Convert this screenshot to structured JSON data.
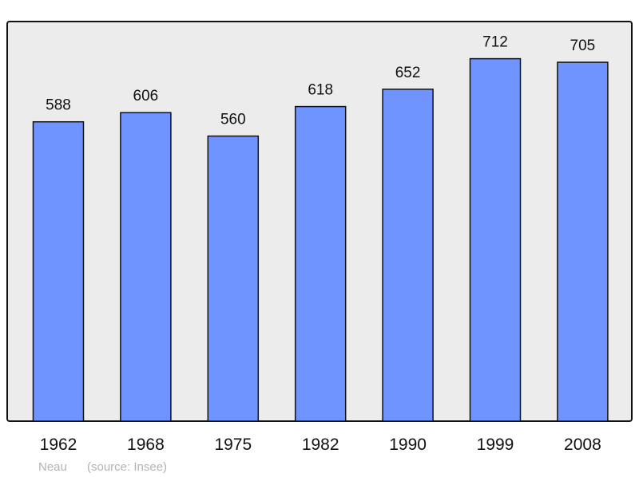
{
  "chart_data": {
    "type": "bar",
    "categories": [
      "1962",
      "1968",
      "1975",
      "1982",
      "1990",
      "1999",
      "2008"
    ],
    "values": [
      588,
      606,
      560,
      618,
      652,
      712,
      705
    ],
    "title": "",
    "xlabel": "",
    "ylabel": "",
    "ylim": [
      0,
      785
    ],
    "grid": false,
    "bar_color": "#7094ff",
    "plot_background": "#ececec"
  },
  "footer": {
    "author": "Neau",
    "source": "(source: Insee)"
  }
}
